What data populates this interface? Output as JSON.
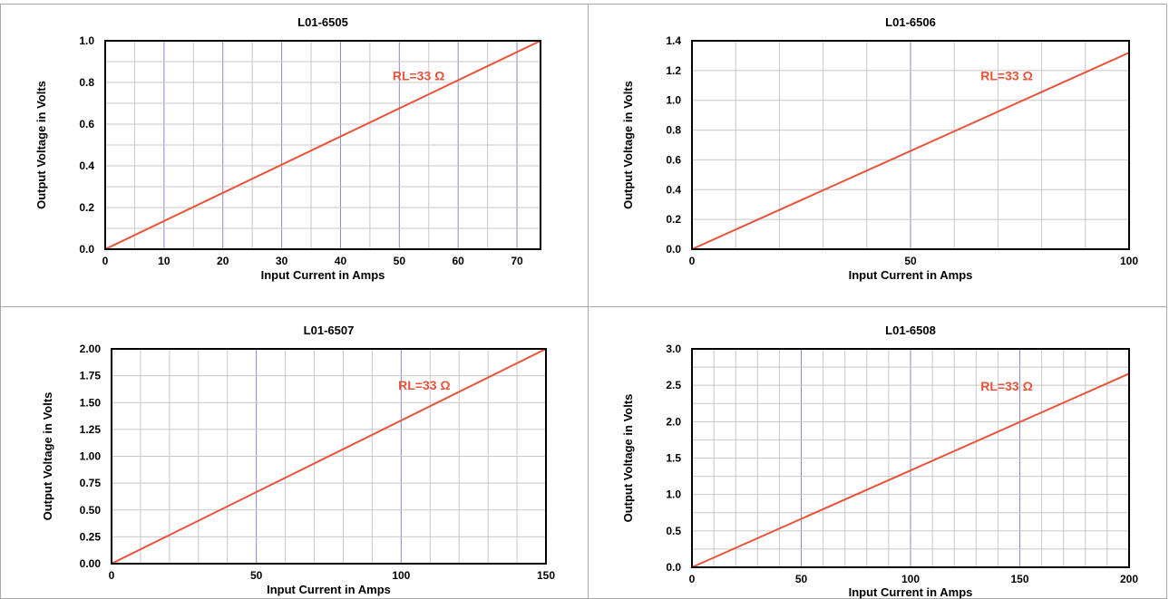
{
  "colors": {
    "line": "#e8533a",
    "grid_minor": "#c8c8c8",
    "grid_major": "#8f86c4",
    "axis": "#000000",
    "frame": "#a8a8a8"
  },
  "chart_data": [
    {
      "type": "line",
      "title": "L01-6505",
      "xlabel": "Input Current in Amps",
      "ylabel": "Output Voltage in Volts",
      "xlim": [
        0,
        74
      ],
      "ylim": [
        0,
        1.0
      ],
      "xticks": [
        "0",
        "10",
        "20",
        "30",
        "40",
        "50",
        "60",
        "70"
      ],
      "xtick_values": [
        0,
        10,
        20,
        30,
        40,
        50,
        60,
        70
      ],
      "yticks": [
        "0.0",
        "0.2",
        "0.4",
        "0.6",
        "0.8",
        "1.0"
      ],
      "ytick_values": [
        0,
        0.2,
        0.4,
        0.6,
        0.8,
        1.0
      ],
      "minor_x_step": 5,
      "minor_y_step": 0.1,
      "major_x_step": 10,
      "annotation": "RL=33 Ω",
      "series": [
        {
          "x": [
            0,
            74
          ],
          "y": [
            0,
            1.0
          ]
        }
      ]
    },
    {
      "type": "line",
      "title": "L01-6506",
      "xlabel": "Input Current in Amps",
      "ylabel": "Output Voltage in Volts",
      "xlim": [
        0,
        100
      ],
      "ylim": [
        0,
        1.4
      ],
      "xticks": [
        "0",
        "50",
        "100"
      ],
      "xtick_values": [
        0,
        50,
        100
      ],
      "yticks": [
        "0.0",
        "0.2",
        "0.4",
        "0.6",
        "0.8",
        "1.0",
        "1.2",
        "1.4"
      ],
      "ytick_values": [
        0,
        0.2,
        0.4,
        0.6,
        0.8,
        1.0,
        1.2,
        1.4
      ],
      "minor_x_step": 10,
      "minor_y_step": 0.2,
      "major_x_step": 50,
      "annotation": "RL=33 Ω",
      "series": [
        {
          "x": [
            0,
            100
          ],
          "y": [
            0,
            1.32
          ]
        }
      ]
    },
    {
      "type": "line",
      "title": "L01-6507",
      "xlabel": "Input Current in Amps",
      "ylabel": "Output Voltage in Volts",
      "xlim": [
        0,
        150
      ],
      "ylim": [
        0,
        2.0
      ],
      "xticks": [
        "0",
        "50",
        "100",
        "150"
      ],
      "xtick_values": [
        0,
        50,
        100,
        150
      ],
      "yticks": [
        "0.00",
        "0.25",
        "0.50",
        "0.75",
        "1.00",
        "1.25",
        "1.50",
        "1.75",
        "2.00"
      ],
      "ytick_values": [
        0,
        0.25,
        0.5,
        0.75,
        1.0,
        1.25,
        1.5,
        1.75,
        2.0
      ],
      "minor_x_step": 10,
      "minor_y_step": 0.25,
      "major_x_step": 50,
      "annotation": "RL=33 Ω",
      "series": [
        {
          "x": [
            0,
            150
          ],
          "y": [
            0,
            2.0
          ]
        }
      ]
    },
    {
      "type": "line",
      "title": "L01-6508",
      "xlabel": "Input Current in Amps",
      "ylabel": "Output Voltage in Volts",
      "xlim": [
        0,
        200
      ],
      "ylim": [
        0,
        3.0
      ],
      "xticks": [
        "0",
        "50",
        "100",
        "150",
        "200"
      ],
      "xtick_values": [
        0,
        50,
        100,
        150,
        200
      ],
      "yticks": [
        "0.0",
        "0.5",
        "1.0",
        "1.5",
        "2.0",
        "2.5",
        "3.0"
      ],
      "ytick_values": [
        0,
        0.5,
        1.0,
        1.5,
        2.0,
        2.5,
        3.0
      ],
      "minor_x_step": 10,
      "minor_y_step": 0.25,
      "major_x_step": 50,
      "annotation": "RL=33 Ω",
      "series": [
        {
          "x": [
            0,
            200
          ],
          "y": [
            0,
            2.66
          ]
        }
      ]
    }
  ]
}
